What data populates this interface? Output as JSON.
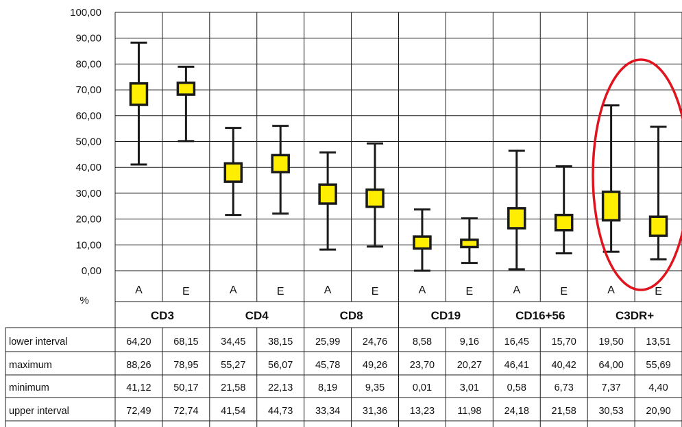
{
  "chart_data": {
    "type": "boxplot",
    "ylabel": "%",
    "ylim": [
      0,
      100
    ],
    "y_ticks": [
      "0,00",
      "10,00",
      "20,00",
      "30,00",
      "40,00",
      "50,00",
      "60,00",
      "70,00",
      "80,00",
      "90,00",
      "100,00"
    ],
    "groups": [
      "CD3",
      "CD4",
      "CD8",
      "CD19",
      "CD16+56",
      "C3DR+"
    ],
    "sub_labels": [
      "A",
      "E",
      "A",
      "E",
      "A",
      "E",
      "A",
      "E",
      "A",
      "E",
      "A",
      "E"
    ],
    "lower_interval": [
      64.2,
      68.15,
      34.45,
      38.15,
      25.99,
      24.76,
      8.58,
      9.16,
      16.45,
      15.7,
      19.5,
      13.51
    ],
    "maximum": [
      88.26,
      78.95,
      55.27,
      56.07,
      45.78,
      49.26,
      23.7,
      20.27,
      46.41,
      40.42,
      64.0,
      55.69
    ],
    "minimum": [
      41.12,
      50.17,
      21.58,
      22.13,
      8.19,
      9.35,
      0.01,
      3.01,
      0.58,
      6.73,
      7.37,
      4.4
    ],
    "upper_interval": [
      72.49,
      72.74,
      41.54,
      44.73,
      33.34,
      31.36,
      13.23,
      11.98,
      24.18,
      21.58,
      30.53,
      20.9
    ],
    "grid": true,
    "box_color": "#ffee00",
    "whisker_color": "#1a1a1a",
    "highlight_color": "#e0141e",
    "highlight_group": "C3DR+"
  },
  "table": {
    "row_labels": [
      "lower interval",
      "maximum",
      "minimum",
      "upper interval"
    ],
    "rows": [
      [
        "64,20",
        "68,15",
        "34,45",
        "38,15",
        "25,99",
        "24,76",
        "8,58",
        "9,16",
        "16,45",
        "15,70",
        "19,50",
        "13,51"
      ],
      [
        "88,26",
        "78,95",
        "55,27",
        "56,07",
        "45,78",
        "49,26",
        "23,70",
        "20,27",
        "46,41",
        "40,42",
        "64,00",
        "55,69"
      ],
      [
        "41,12",
        "50,17",
        "21,58",
        "22,13",
        "8,19",
        "9,35",
        "0,01",
        "3,01",
        "0,58",
        "6,73",
        "7,37",
        "4,40"
      ],
      [
        "72,49",
        "72,74",
        "41,54",
        "44,73",
        "33,34",
        "31,36",
        "13,23",
        "11,98",
        "24,18",
        "21,58",
        "30,53",
        "20,90"
      ]
    ]
  }
}
